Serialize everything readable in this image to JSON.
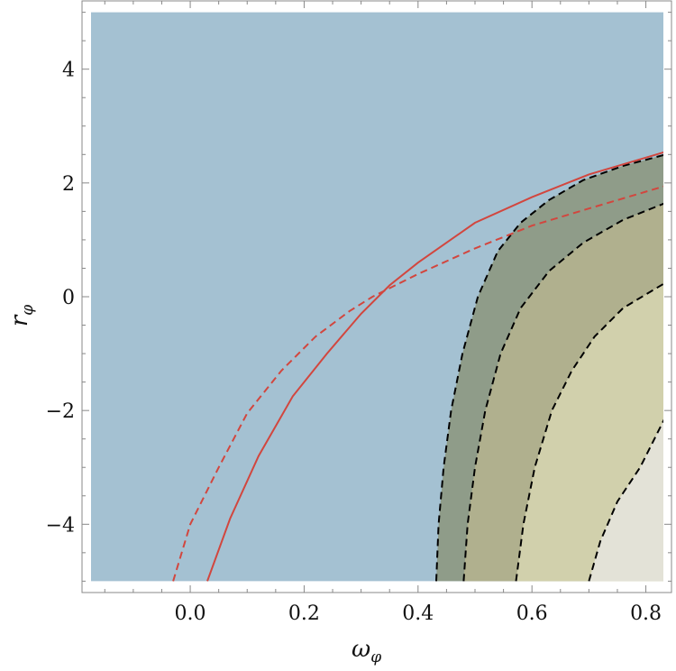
{
  "chart_data": {
    "type": "contour",
    "xlabel": "ω",
    "xlabel_sub": "φ",
    "ylabel": "r",
    "ylabel_sub": "φ",
    "xlim": [
      -0.18,
      0.835
    ],
    "ylim": [
      -5.0,
      5.0
    ],
    "axis_extent": {
      "x": [
        -0.19,
        0.845
      ],
      "y": [
        -5.2,
        5.2
      ]
    },
    "xticks": [
      0.0,
      0.2,
      0.4,
      0.6,
      0.8
    ],
    "xtick_labels": [
      "0.0",
      "0.2",
      "0.4",
      "0.6",
      "0.8"
    ],
    "yticks": [
      -4,
      -2,
      0,
      2,
      4
    ],
    "ytick_labels": [
      "−4",
      "−2",
      "0",
      "2",
      "4"
    ],
    "frame": "box",
    "grid": false,
    "colors": {
      "background_region": "#a4c1d2",
      "level_1": "#8f9c89",
      "level_2": "#b0b08e",
      "level_3": "#d1d0ac",
      "level_4": "#e3e2d7",
      "contour_line": "#000000",
      "red_curve": "#d2463e"
    },
    "contours": [
      {
        "name": "boundary-1",
        "style": "dashed",
        "points": [
          [
            0.432,
            -5.0
          ],
          [
            0.436,
            -4.0
          ],
          [
            0.445,
            -3.0
          ],
          [
            0.458,
            -2.0
          ],
          [
            0.478,
            -1.0
          ],
          [
            0.505,
            0.0
          ],
          [
            0.54,
            0.8
          ],
          [
            0.58,
            1.3
          ],
          [
            0.63,
            1.7
          ],
          [
            0.69,
            2.05
          ],
          [
            0.76,
            2.3
          ],
          [
            0.835,
            2.5
          ]
        ]
      },
      {
        "name": "boundary-2",
        "style": "dashed",
        "points": [
          [
            0.48,
            -5.0
          ],
          [
            0.487,
            -4.0
          ],
          [
            0.5,
            -3.0
          ],
          [
            0.518,
            -2.0
          ],
          [
            0.545,
            -1.0
          ],
          [
            0.58,
            -0.2
          ],
          [
            0.63,
            0.45
          ],
          [
            0.69,
            0.95
          ],
          [
            0.76,
            1.35
          ],
          [
            0.835,
            1.65
          ]
        ]
      },
      {
        "name": "boundary-3",
        "style": "dashed",
        "points": [
          [
            0.572,
            -5.0
          ],
          [
            0.585,
            -4.0
          ],
          [
            0.605,
            -3.0
          ],
          [
            0.635,
            -2.0
          ],
          [
            0.67,
            -1.3
          ],
          [
            0.71,
            -0.7
          ],
          [
            0.76,
            -0.2
          ],
          [
            0.835,
            0.25
          ]
        ]
      },
      {
        "name": "boundary-4",
        "style": "dashed",
        "points": [
          [
            0.7,
            -5.0
          ],
          [
            0.72,
            -4.3
          ],
          [
            0.75,
            -3.6
          ],
          [
            0.79,
            -3.0
          ],
          [
            0.835,
            -2.1
          ]
        ]
      }
    ],
    "curves": [
      {
        "name": "red-solid",
        "style": "solid",
        "points": [
          [
            0.03,
            -5.0
          ],
          [
            0.07,
            -3.9
          ],
          [
            0.12,
            -2.8
          ],
          [
            0.18,
            -1.75
          ],
          [
            0.24,
            -1.0
          ],
          [
            0.3,
            -0.3
          ],
          [
            0.35,
            0.2
          ],
          [
            0.4,
            0.6
          ],
          [
            0.45,
            0.95
          ],
          [
            0.5,
            1.3
          ],
          [
            0.6,
            1.75
          ],
          [
            0.7,
            2.15
          ],
          [
            0.835,
            2.55
          ]
        ]
      },
      {
        "name": "red-dashed",
        "style": "dashed",
        "points": [
          [
            -0.03,
            -5.0
          ],
          [
            0.0,
            -4.0
          ],
          [
            0.05,
            -3.0
          ],
          [
            0.1,
            -2.05
          ],
          [
            0.16,
            -1.3
          ],
          [
            0.22,
            -0.7
          ],
          [
            0.28,
            -0.25
          ],
          [
            0.32,
            0.0
          ],
          [
            0.4,
            0.4
          ],
          [
            0.5,
            0.85
          ],
          [
            0.6,
            1.25
          ],
          [
            0.7,
            1.55
          ],
          [
            0.835,
            1.95
          ]
        ]
      }
    ]
  }
}
